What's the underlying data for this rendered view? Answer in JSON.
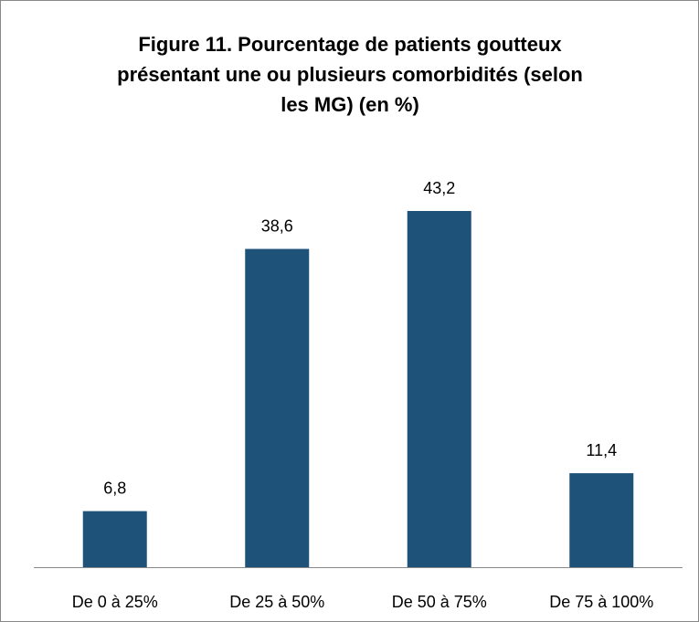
{
  "chart_data": {
    "type": "bar",
    "title": [
      "Figure 11. Pourcentage de patients goutteux",
      "présentant une ou plusieurs comorbidités (selon",
      "les MG) (en %)"
    ],
    "categories": [
      "De 0 à 25%",
      "De 25 à 50%",
      "De 50 à 75%",
      "De 75 à 100%"
    ],
    "values": [
      6.8,
      38.6,
      43.2,
      11.4
    ],
    "value_labels": [
      "6,8",
      "38,6",
      "43,2",
      "11,4"
    ],
    "color": "#1f5278"
  }
}
